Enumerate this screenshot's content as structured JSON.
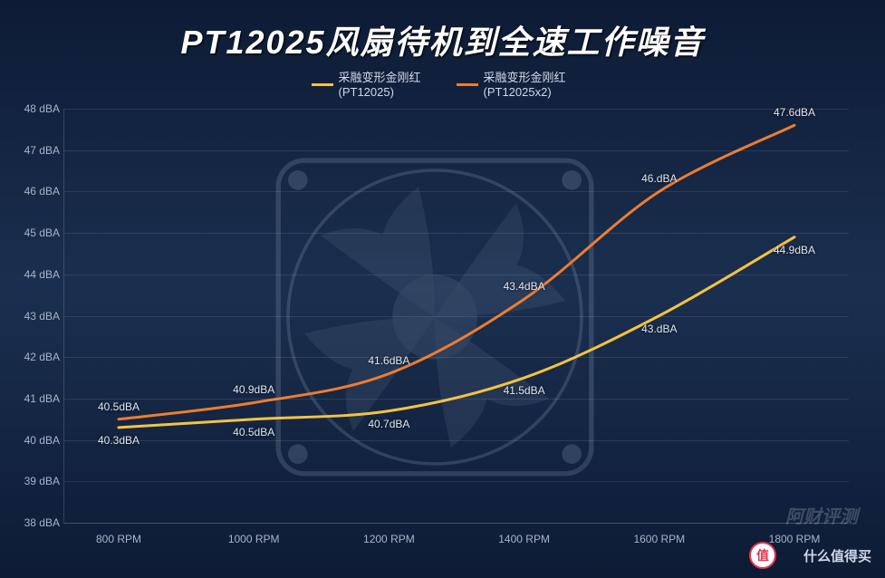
{
  "title": "PT12025风扇待机到全速工作噪音",
  "legend": [
    {
      "label": "采融变形金刚红(PT12025)",
      "color": "#f5c242"
    },
    {
      "label": "采融变形金刚红(PT12025x2)",
      "color": "#f07c2e"
    }
  ],
  "chart": {
    "type": "line",
    "background_color": "#122743",
    "grid_color": "rgba(255,255,255,0.10)",
    "axis_label_color": "#a8b4c8",
    "data_label_color": "#e0e6f0",
    "title_fontsize": 36,
    "label_fontsize": 12,
    "line_width": 3,
    "x": {
      "categories": [
        "800 RPM",
        "1000 RPM",
        "1200 RPM",
        "1400 RPM",
        "1600 RPM",
        "1800 RPM"
      ],
      "values": [
        800,
        1000,
        1200,
        1400,
        1600,
        1800
      ]
    },
    "y": {
      "min": 38,
      "max": 48,
      "step": 1,
      "unit": "dBA",
      "tick_format": "{v} dBA"
    },
    "series": [
      {
        "name": "采融变形金刚红(PT12025)",
        "color": "#f5c242",
        "values": [
          40.3,
          40.5,
          40.7,
          41.5,
          43.0,
          44.9
        ],
        "labels": [
          "40.3dBA",
          "40.5dBA",
          "40.7dBA",
          "41.5dBA",
          "43.dBA",
          "44.9dBA"
        ],
        "label_offset_y": 14
      },
      {
        "name": "采融变形金刚红(PT12025x2)",
        "color": "#f07c2e",
        "values": [
          40.5,
          40.9,
          41.6,
          43.4,
          46.0,
          47.6
        ],
        "labels": [
          "40.5dBA",
          "40.9dBA",
          "41.6dBA",
          "43.4dBA",
          "46.dBA",
          "47.6dBA"
        ],
        "label_offset_y": -14
      }
    ]
  },
  "watermark": {
    "badge": "值",
    "text": "什么值得买",
    "faint": "阿财评测"
  }
}
